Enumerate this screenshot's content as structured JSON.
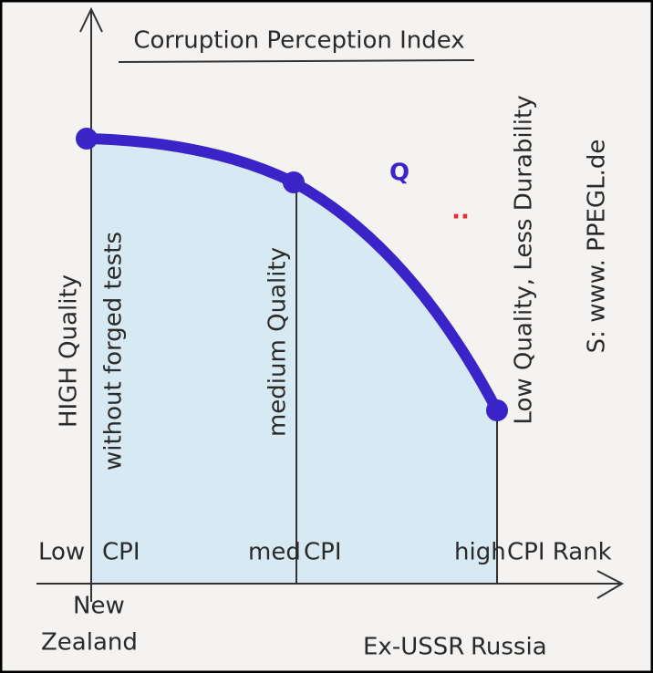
{
  "title": "Corruption Perception Index",
  "mark": {
    "letter": "Q",
    "dots": ".."
  },
  "vertical_labels": [
    "HIGH Quality",
    "without forged tests",
    "medium Quality",
    "Low Quality, Less Durability",
    "S: www. PPEGL.de"
  ],
  "axis_labels": [
    "Low",
    "CPI",
    "med",
    "CPI",
    "high",
    "CPI Rank"
  ],
  "places": [
    "New",
    "Zealand",
    "Ex-USSR",
    "Russia"
  ]
}
